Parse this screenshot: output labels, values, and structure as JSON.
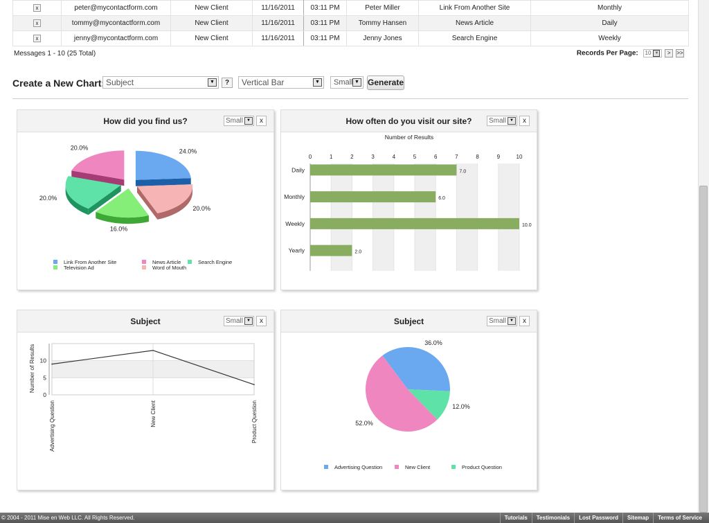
{
  "table": {
    "rows": [
      {
        "delete": "x",
        "email": "peter@mycontactform.com",
        "subject": "New Client",
        "date": "11/16/2011",
        "time": "03:11 PM",
        "name": "Peter Miller",
        "source": "Link From Another Site",
        "frequency": "Monthly"
      },
      {
        "delete": "x",
        "email": "tommy@mycontactform.com",
        "subject": "New Client",
        "date": "11/16/2011",
        "time": "03:11 PM",
        "name": "Tommy Hansen",
        "source": "News Article",
        "frequency": "Daily"
      },
      {
        "delete": "x",
        "email": "jenny@mycontactform.com",
        "subject": "New Client",
        "date": "11/16/2011",
        "time": "03:11 PM",
        "name": "Jenny Jones",
        "source": "Search Engine",
        "frequency": "Weekly"
      }
    ]
  },
  "pagination": {
    "messages": "Messages 1 - 10 (25 Total)",
    "records_label": "Records Per Page:",
    "records_value": "10",
    "next": ">",
    "last": ">>"
  },
  "create_chart": {
    "label": "Create a New Chart:",
    "field": "Subject",
    "help": "?",
    "type": "Vertical Bar",
    "size": "Small",
    "generate": "Generate"
  },
  "panel_controls": {
    "size": "Small",
    "close": "x"
  },
  "colors": {
    "blue": "#6aa8ef",
    "pink": "#ef86c0",
    "teal": "#5fe2a8",
    "green": "#84ee78",
    "salmon": "#f6b4b4",
    "bar": "#88ad60"
  },
  "chart_data": [
    {
      "type": "pie",
      "title": "How did you find us?",
      "slices": [
        {
          "label": "Link From Another Site",
          "value": 24.0,
          "value_label": "24.0%",
          "color": "#6aa8ef",
          "dark": "#1a5fa8"
        },
        {
          "label": "Word of Mouth",
          "value": 20.0,
          "value_label": "20.0%",
          "color": "#f6b4b4",
          "dark": "#b06868"
        },
        {
          "label": "Television Ad",
          "value": 16.0,
          "value_label": "16.0%",
          "color": "#84ee78",
          "dark": "#3ea837"
        },
        {
          "label": "Search Engine",
          "value": 20.0,
          "value_label": "20.0%",
          "color": "#5fe2a8",
          "dark": "#1f9460"
        },
        {
          "label": "News Article",
          "value": 20.0,
          "value_label": "20.0%",
          "color": "#ef86c0",
          "dark": "#a53d74"
        }
      ],
      "legend": [
        "Link From Another Site",
        "News Article",
        "Search Engine",
        "Television Ad",
        "Word of Mouth"
      ]
    },
    {
      "type": "bar",
      "orientation": "horizontal",
      "title": "How often do you visit our site?",
      "xlabel": "Number of Results",
      "categories": [
        "Daily",
        "Monthly",
        "Weekly",
        "Yearly"
      ],
      "values": [
        7,
        6,
        10,
        2
      ],
      "value_labels": [
        "7.0",
        "6.0",
        "10.0",
        "2.0"
      ],
      "xlim": [
        0,
        10
      ],
      "xticks": [
        "0",
        "1",
        "2",
        "3",
        "4",
        "5",
        "6",
        "7",
        "8",
        "9",
        "10"
      ]
    },
    {
      "type": "line",
      "title": "Subject",
      "ylabel": "Number of Results",
      "categories": [
        "Advertising Question",
        "New Client",
        "Product Question"
      ],
      "values": [
        9,
        13,
        3
      ],
      "ylim": [
        0,
        15
      ],
      "yticks": [
        "0",
        "5",
        "10"
      ]
    },
    {
      "type": "pie",
      "title": "Subject",
      "slices": [
        {
          "label": "Advertising Question",
          "value": 36.0,
          "value_label": "36.0%",
          "color": "#6aa8ef"
        },
        {
          "label": "Product Question",
          "value": 12.0,
          "value_label": "12.0%",
          "color": "#5fe2a8"
        },
        {
          "label": "New Client",
          "value": 52.0,
          "value_label": "52.0%",
          "color": "#ef86c0"
        }
      ],
      "legend": [
        "Advertising Question",
        "New Client",
        "Product Question"
      ]
    }
  ],
  "footer": {
    "copyright": "© 2004 - 2011 Mise en Web LLC. All Rights Reserved.",
    "links": [
      "Tutorials",
      "Testimonials",
      "Lost Password",
      "Sitemap",
      "Terms of Service"
    ]
  }
}
